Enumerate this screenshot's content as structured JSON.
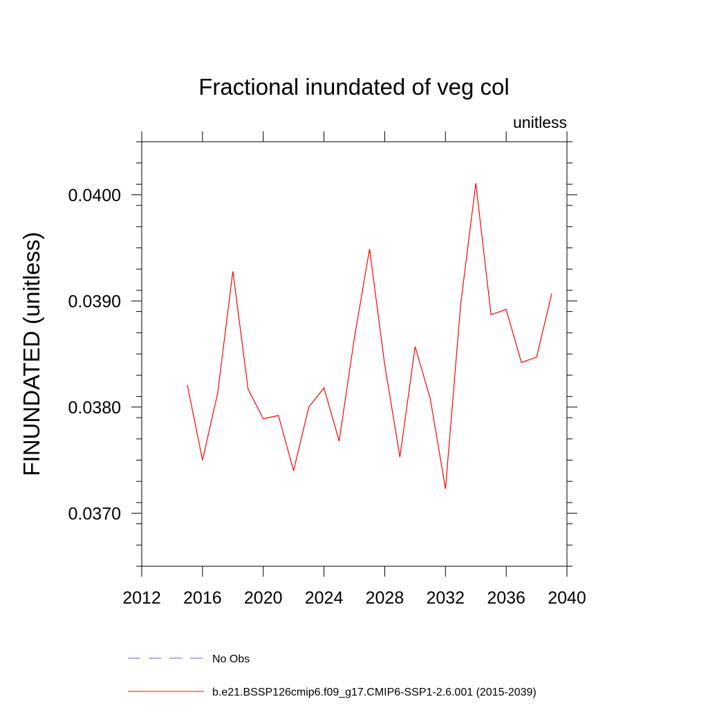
{
  "chart_data": {
    "type": "line",
    "title": "Fractional inundated of veg col",
    "units_label": "unitless",
    "xlabel": "",
    "ylabel": "FINUNDATED  (unitless)",
    "xlim": [
      2012,
      2040
    ],
    "ylim": [
      0.0365,
      0.0405
    ],
    "x_ticks": [
      2012,
      2016,
      2020,
      2024,
      2028,
      2032,
      2036,
      2040
    ],
    "x_tick_labels": [
      "2012",
      "2016",
      "2020",
      "2024",
      "2028",
      "2032",
      "2036",
      "2040"
    ],
    "y_ticks": [
      0.037,
      0.038,
      0.039,
      0.04
    ],
    "y_tick_labels": [
      "0.0370",
      "0.0380",
      "0.0390",
      "0.0400"
    ],
    "series": [
      {
        "name": "b.e21.BSSP126cmip6.f09_g17.CMIP6-SSP1-2.6.001 (2015-2039)",
        "color": "#ff0000",
        "dash": "solid",
        "x": [
          2015,
          2016,
          2017,
          2018,
          2019,
          2020,
          2021,
          2022,
          2023,
          2024,
          2025,
          2026,
          2027,
          2028,
          2029,
          2030,
          2031,
          2032,
          2033,
          2034,
          2035,
          2036,
          2037,
          2038,
          2039
        ],
        "y": [
          0.03821,
          0.0375,
          0.03813,
          0.03928,
          0.03817,
          0.03789,
          0.03792,
          0.0374,
          0.038,
          0.03818,
          0.03768,
          0.03865,
          0.03949,
          0.0384,
          0.03753,
          0.03857,
          0.03808,
          0.03723,
          0.03897,
          0.04011,
          0.03887,
          0.03892,
          0.03842,
          0.03847,
          0.03907
        ]
      }
    ],
    "legend": [
      {
        "label": "No Obs",
        "color": "#6a5acd",
        "dash": "dashed"
      },
      {
        "label": "b.e21.BSSP126cmip6.f09_g17.CMIP6-SSP1-2.6.001 (2015-2039)",
        "color": "#ff0000",
        "dash": "solid"
      }
    ],
    "legend_position": "bottom",
    "grid": false
  }
}
